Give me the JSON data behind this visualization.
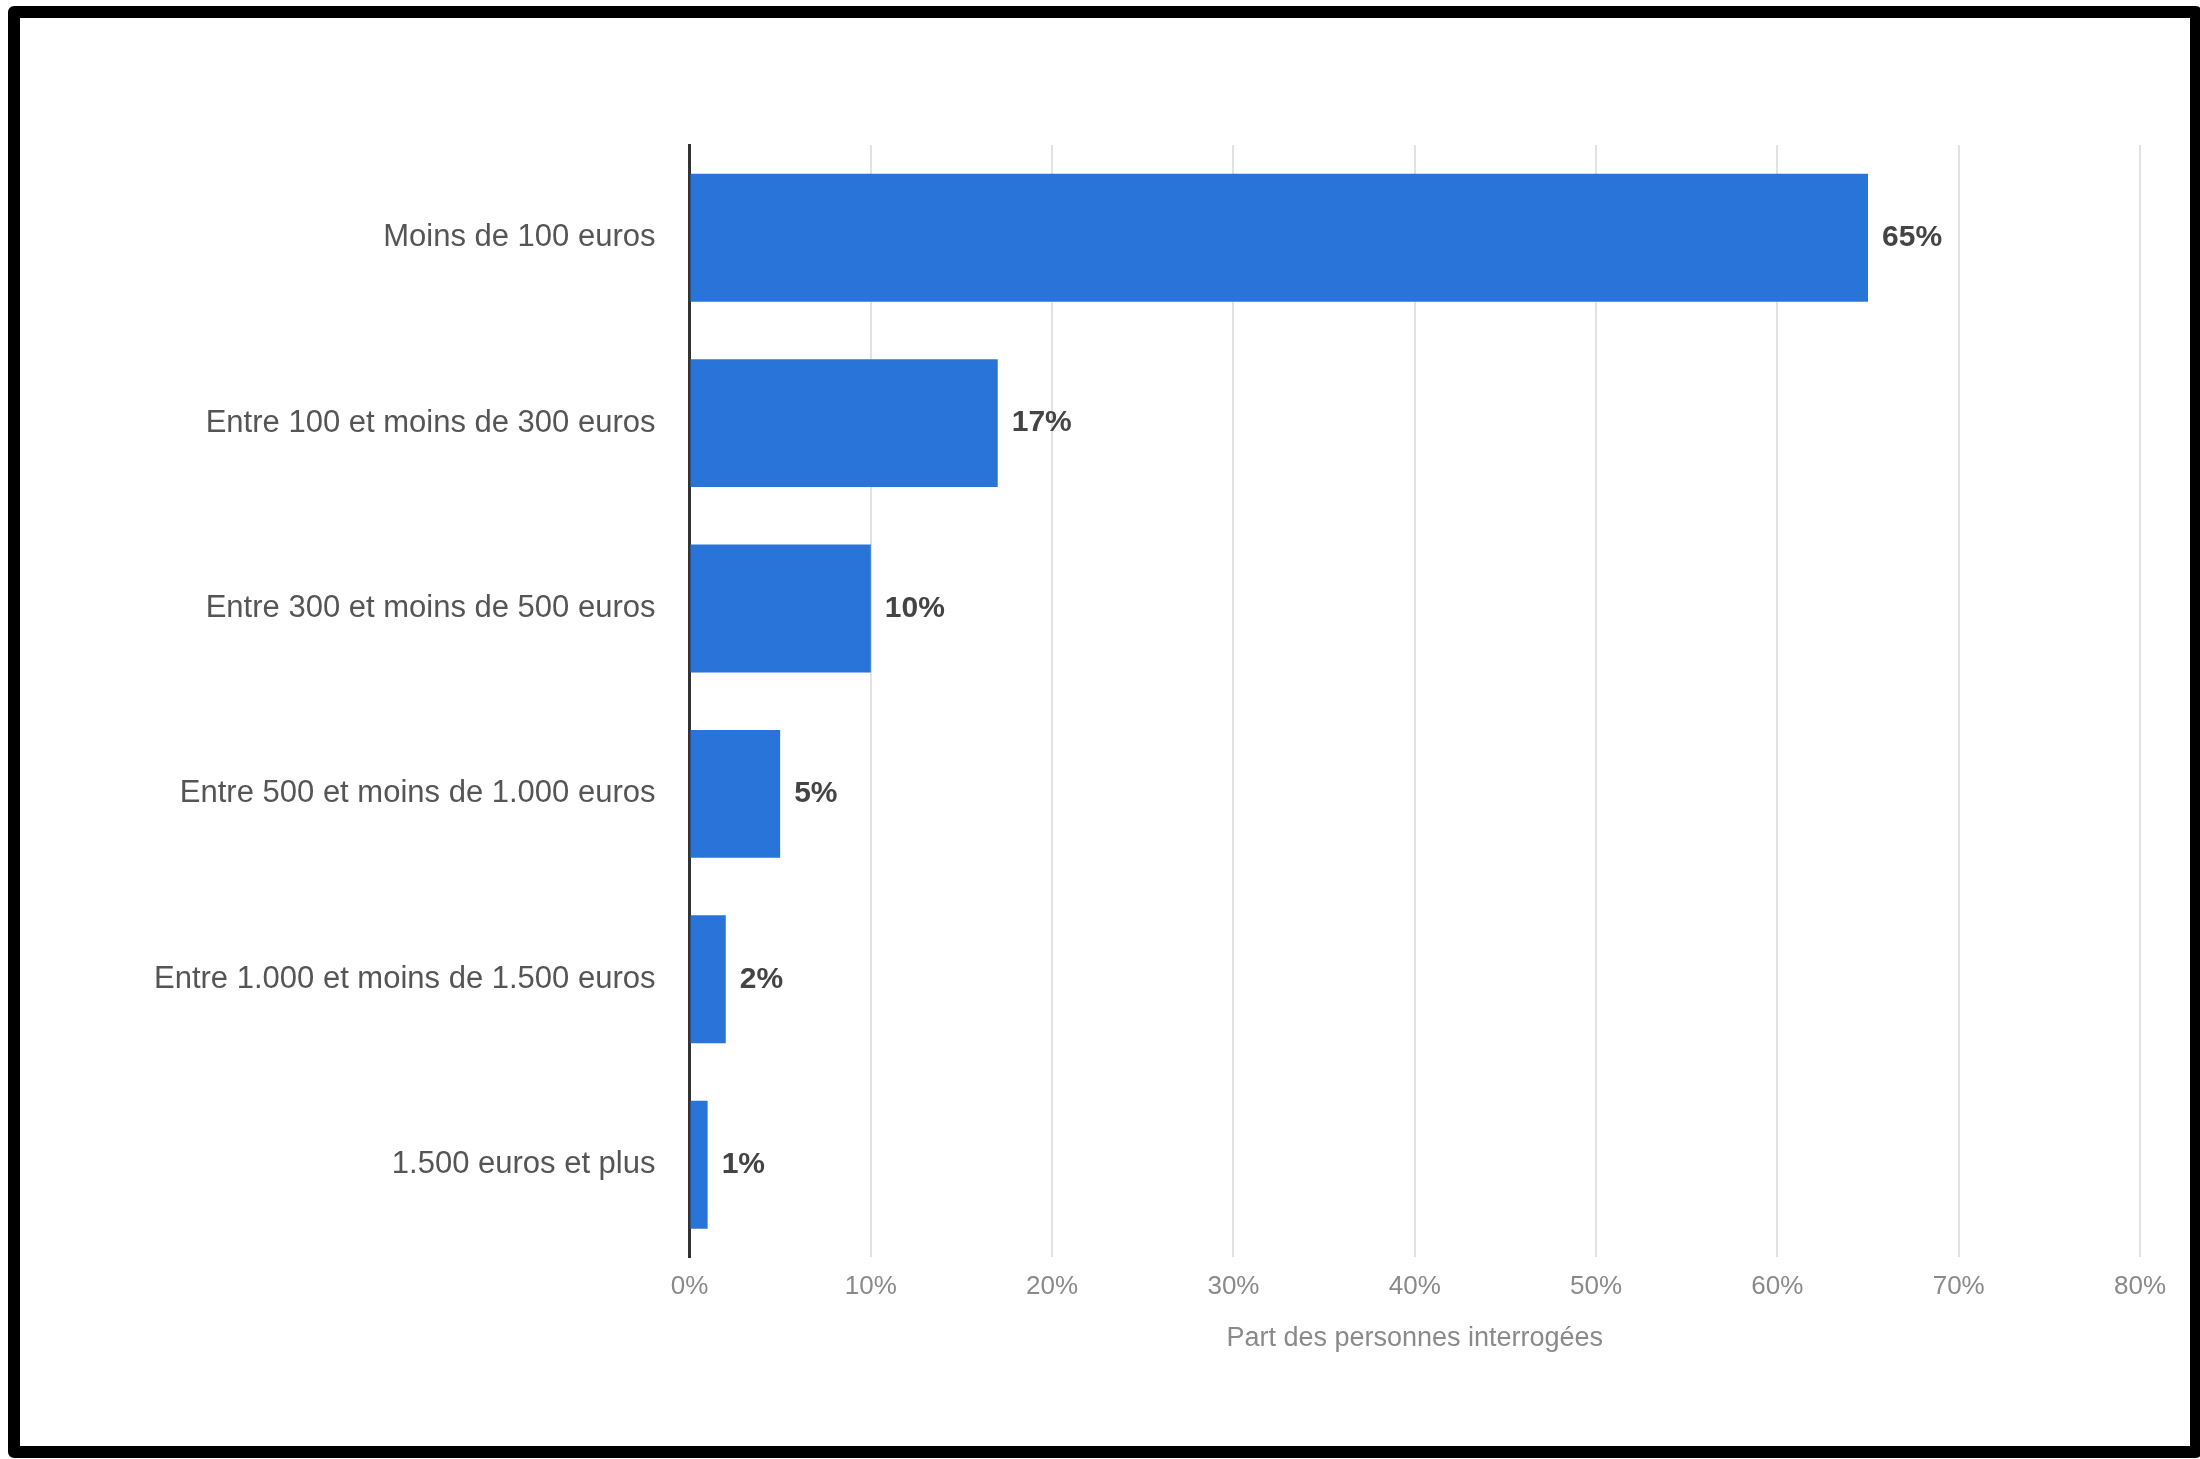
{
  "chart_data": {
    "type": "bar",
    "orientation": "horizontal",
    "xlabel": "Part des personnes interrogées",
    "categories": [
      "Moins de 100 euros",
      "Entre 100 et moins de 300 euros",
      "Entre 300 et moins de 500 euros",
      "Entre 500 et moins de 1.000 euros",
      "Entre 1.000 et moins de 1.500 euros",
      "1.500 euros et plus"
    ],
    "values": [
      65,
      17,
      10,
      5,
      2,
      1
    ],
    "value_labels": [
      "65%",
      "17%",
      "10%",
      "5%",
      "2%",
      "1%"
    ],
    "color": "#2874d9",
    "xlim": [
      0,
      80
    ],
    "xticks": [
      {
        "value": 0,
        "label": "0%"
      },
      {
        "value": 10,
        "label": "10%"
      },
      {
        "value": 20,
        "label": "20%"
      },
      {
        "value": 30,
        "label": "30%"
      },
      {
        "value": 40,
        "label": "40%"
      },
      {
        "value": 50,
        "label": "50%"
      },
      {
        "value": 60,
        "label": "60%"
      },
      {
        "value": 70,
        "label": "70%"
      },
      {
        "value": 80,
        "label": "80%"
      }
    ],
    "grid": "x",
    "legend": false
  }
}
